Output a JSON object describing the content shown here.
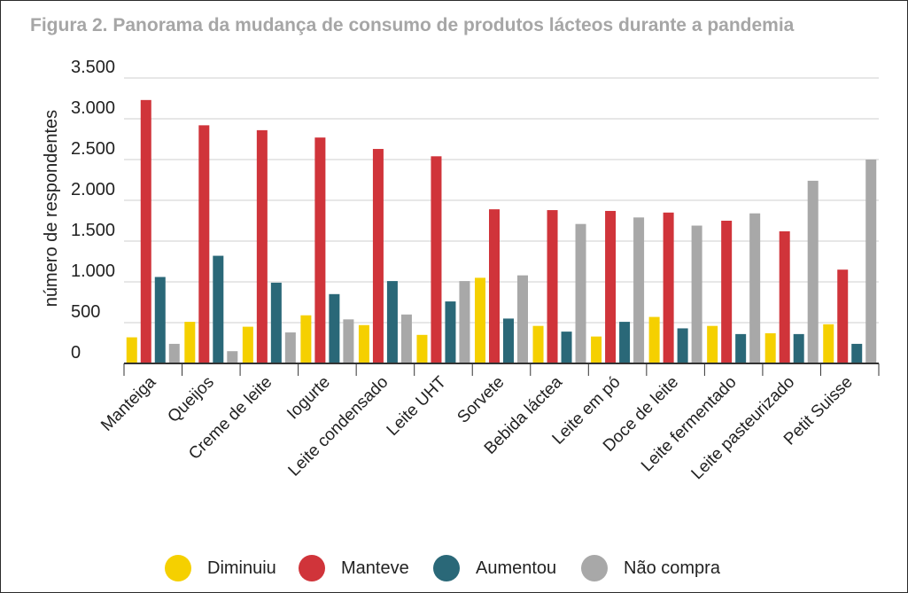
{
  "title": "Figura 2. Panorama da mudança de consumo de produtos lácteos durante a pandemia",
  "chart_data": {
    "type": "bar",
    "title": "Figura 2. Panorama da mudança de consumo de produtos lácteos durante a pandemia",
    "xlabel": "",
    "ylabel": "número de respondentes",
    "ylim": [
      0,
      3500
    ],
    "yticks": [
      0,
      500,
      1000,
      1500,
      2000,
      2500,
      3000,
      3500
    ],
    "ytick_labels": [
      "0",
      "500",
      "1.000",
      "1.500",
      "2.000",
      "2.500",
      "3.000",
      "3.500"
    ],
    "grid": true,
    "legend_position": "bottom",
    "categories": [
      "Manteiga",
      "Queijos",
      "Creme de leite",
      "Iogurte",
      "Leite condensado",
      "Leite UHT",
      "Sorvete",
      "Bebida láctea",
      "Leite em pó",
      "Doce de leite",
      "Leite fermentado",
      "Leite pasteurizado",
      "Petit Suisse"
    ],
    "series": [
      {
        "name": "Diminuiu",
        "color": "#f5d000",
        "values": [
          320,
          510,
          450,
          590,
          470,
          350,
          1050,
          460,
          330,
          570,
          460,
          370,
          480
        ]
      },
      {
        "name": "Manteve",
        "color": "#d0343a",
        "values": [
          3230,
          2920,
          2860,
          2770,
          2630,
          2540,
          1890,
          1880,
          1870,
          1850,
          1750,
          1620,
          1150
        ]
      },
      {
        "name": "Aumentou",
        "color": "#2a6878",
        "values": [
          1060,
          1320,
          990,
          850,
          1010,
          760,
          550,
          390,
          510,
          430,
          360,
          360,
          240
        ]
      },
      {
        "name": "Não compra",
        "color": "#a8a8a8",
        "values": [
          240,
          150,
          380,
          540,
          600,
          1010,
          1080,
          1710,
          1790,
          1690,
          1840,
          2240,
          2500
        ]
      }
    ]
  }
}
